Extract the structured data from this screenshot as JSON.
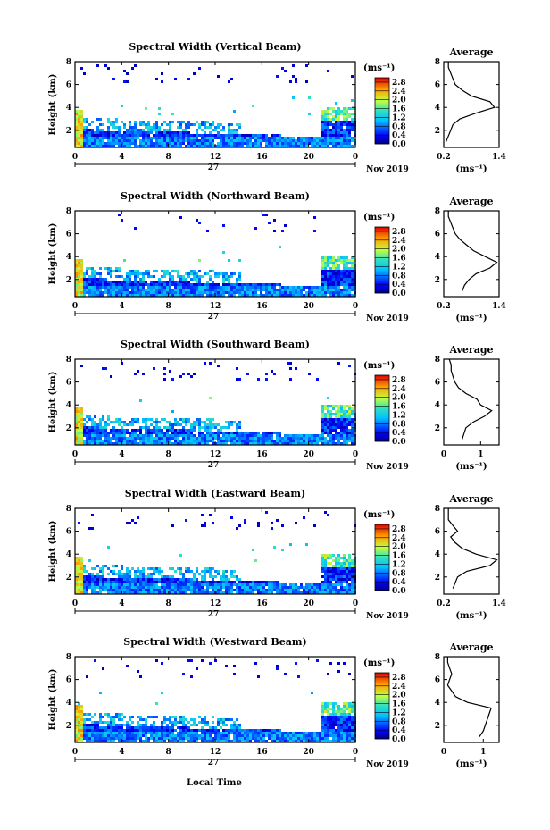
{
  "figure": {
    "xlabel": "Local Time",
    "date_label": "Nov 2019",
    "day_label": "27",
    "colorbar_unit": "(ms⁻¹)",
    "colorbar_ticks": [
      "0.0",
      "0.4",
      "0.8",
      "1.2",
      "1.6",
      "2.0",
      "2.4",
      "2.8"
    ],
    "colorbar_range": [
      0,
      3.0
    ]
  },
  "chart_data": [
    {
      "type": "heatmap",
      "title": "Spectral Width (Vertical Beam)",
      "ylabel": "Height (km)",
      "x_ticks": [
        "0",
        "4",
        "8",
        "12",
        "16",
        "20",
        "0"
      ],
      "y_ticks": [
        "2",
        "4",
        "6",
        "8"
      ],
      "xlim": [
        0,
        24
      ],
      "ylim": [
        0.5,
        8
      ],
      "profile": {
        "title": "Average",
        "xlabel": "(ms⁻¹)",
        "x_ticks": [
          "0.2",
          "1.4"
        ],
        "xlim": [
          0.2,
          1.4
        ],
        "y_ticks": [
          "2",
          "4",
          "6",
          "8"
        ],
        "ylim": [
          0.5,
          8
        ],
        "heights": [
          1,
          1.5,
          2,
          2.5,
          3,
          3.5,
          4,
          4.5,
          5,
          5.5,
          6,
          6.5,
          7,
          7.5,
          8
        ],
        "values": [
          0.25,
          0.3,
          0.35,
          0.4,
          0.55,
          0.9,
          1.3,
          1.2,
          0.8,
          0.6,
          0.45,
          0.4,
          0.35,
          0.3,
          0.3
        ]
      }
    },
    {
      "type": "heatmap",
      "title": "Spectral Width (Northward Beam)",
      "ylabel": "Height (km)",
      "x_ticks": [
        "0",
        "4",
        "8",
        "12",
        "16",
        "20",
        "0"
      ],
      "y_ticks": [
        "2",
        "4",
        "6",
        "8"
      ],
      "xlim": [
        0,
        24
      ],
      "ylim": [
        0.5,
        8
      ],
      "profile": {
        "title": "Average",
        "xlabel": "(ms⁻¹)",
        "x_ticks": [
          "0.2",
          "1.4"
        ],
        "xlim": [
          0.2,
          1.4
        ],
        "y_ticks": [
          "2",
          "4",
          "6",
          "8"
        ],
        "ylim": [
          0.5,
          8
        ],
        "heights": [
          1,
          1.5,
          2,
          2.5,
          3,
          3.5,
          4,
          4.5,
          5,
          5.5,
          6,
          6.5,
          7,
          7.5,
          8
        ],
        "values": [
          0.6,
          0.65,
          0.75,
          0.9,
          1.2,
          1.35,
          1.1,
          0.85,
          0.7,
          0.55,
          0.45,
          0.4,
          0.35,
          0.3,
          0.3
        ]
      }
    },
    {
      "type": "heatmap",
      "title": "Spectral Width (Southward Beam)",
      "ylabel": "Height (km)",
      "x_ticks": [
        "0",
        "4",
        "8",
        "12",
        "16",
        "20",
        "0"
      ],
      "y_ticks": [
        "2",
        "4",
        "6",
        "8"
      ],
      "xlim": [
        0,
        24
      ],
      "ylim": [
        0.5,
        8
      ],
      "profile": {
        "title": "Average",
        "xlabel": "(ms⁻¹)",
        "x_ticks": [
          "0",
          "1"
        ],
        "xlim": [
          0,
          1.5
        ],
        "y_ticks": [
          "2",
          "4",
          "6",
          "8"
        ],
        "ylim": [
          0.5,
          8
        ],
        "heights": [
          1,
          1.5,
          2,
          2.5,
          3,
          3.5,
          4,
          4.5,
          5,
          5.5,
          6,
          6.5,
          7,
          7.5,
          8
        ],
        "values": [
          0.5,
          0.55,
          0.6,
          0.8,
          1.1,
          1.3,
          1.0,
          0.9,
          0.6,
          0.4,
          0.3,
          0.25,
          0.2,
          0.2,
          0.15
        ]
      }
    },
    {
      "type": "heatmap",
      "title": "Spectral Width (Eastward Beam)",
      "ylabel": "Height (km)",
      "x_ticks": [
        "0",
        "4",
        "8",
        "12",
        "16",
        "20",
        "0"
      ],
      "y_ticks": [
        "2",
        "4",
        "6",
        "8"
      ],
      "xlim": [
        0,
        24
      ],
      "ylim": [
        0.5,
        8
      ],
      "profile": {
        "title": "Average",
        "xlabel": "(ms⁻¹)",
        "x_ticks": [
          "0.2",
          "1.4"
        ],
        "xlim": [
          0.2,
          1.4
        ],
        "y_ticks": [
          "2",
          "4",
          "6",
          "8"
        ],
        "ylim": [
          0.5,
          8
        ],
        "heights": [
          1,
          1.5,
          2,
          2.5,
          3,
          3.5,
          4,
          4.5,
          5,
          5.5,
          6,
          6.5,
          7,
          7.5,
          8
        ],
        "values": [
          0.4,
          0.45,
          0.5,
          0.7,
          1.2,
          1.35,
          0.9,
          0.6,
          0.45,
          0.35,
          0.5,
          0.4,
          0.3,
          0.3,
          0.3
        ]
      }
    },
    {
      "type": "heatmap",
      "title": "Spectral Width (Westward Beam)",
      "ylabel": "Height (km)",
      "x_ticks": [
        "0",
        "4",
        "8",
        "12",
        "16",
        "20",
        "0"
      ],
      "y_ticks": [
        "2",
        "4",
        "6",
        "8"
      ],
      "xlim": [
        0,
        24
      ],
      "ylim": [
        0.5,
        8
      ],
      "profile": {
        "title": "Average",
        "xlabel": "(ms⁻¹)",
        "x_ticks": [
          "0",
          "1"
        ],
        "xlim": [
          0,
          1.4
        ],
        "y_ticks": [
          "2",
          "4",
          "6",
          "8"
        ],
        "ylim": [
          0.5,
          8
        ],
        "heights": [
          1,
          1.5,
          2,
          2.5,
          3,
          3.5,
          4,
          4.5,
          5,
          5.5,
          6,
          6.5,
          7,
          7.5,
          8
        ],
        "values": [
          0.9,
          1.0,
          1.05,
          1.1,
          1.15,
          1.2,
          0.6,
          0.3,
          0.2,
          0.1,
          0.15,
          0.2,
          0.15,
          0.1,
          0.1
        ]
      }
    }
  ]
}
